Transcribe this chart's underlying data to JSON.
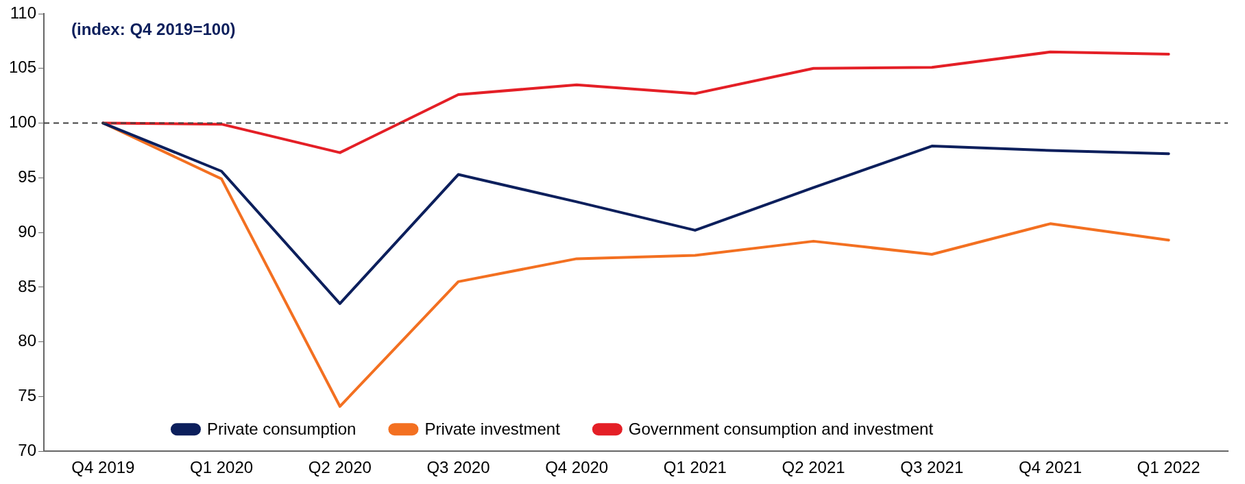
{
  "chart_data": {
    "type": "line",
    "subtitle": "(index: Q4 2019=100)",
    "categories": [
      "Q4 2019",
      "Q1 2020",
      "Q2 2020",
      "Q3 2020",
      "Q4 2020",
      "Q1 2021",
      "Q2 2021",
      "Q3 2021",
      "Q4 2021",
      "Q1 2022"
    ],
    "series": [
      {
        "name": "Private consumption",
        "color": "#0c1f5c",
        "values": [
          100,
          95.6,
          83.5,
          95.3,
          92.8,
          90.2,
          94.1,
          97.9,
          97.5,
          97.2
        ]
      },
      {
        "name": "Private investment",
        "color": "#f37021",
        "values": [
          100,
          94.9,
          74.1,
          85.5,
          87.6,
          87.9,
          89.2,
          88.0,
          90.8,
          89.3
        ]
      },
      {
        "name": "Government consumption and investment",
        "color": "#e41f26",
        "values": [
          100,
          99.9,
          97.3,
          102.6,
          103.5,
          102.7,
          105.0,
          105.1,
          106.5,
          106.3
        ]
      }
    ],
    "ylim": [
      70,
      110
    ],
    "yticks": [
      70,
      75,
      80,
      85,
      90,
      95,
      100,
      105,
      110
    ],
    "ref_lines": [
      {
        "axis": "y",
        "value": 100,
        "color": "#404040",
        "line_style": "dashed"
      }
    ],
    "grid": false,
    "legend": "bottom",
    "marker": "none",
    "line_style": "solid"
  }
}
